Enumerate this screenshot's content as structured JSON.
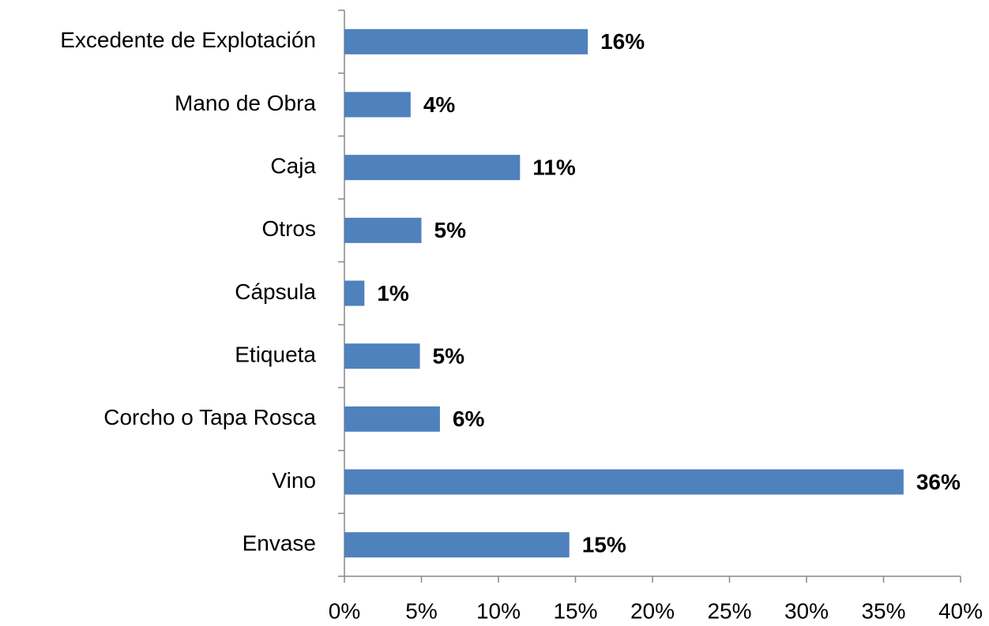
{
  "chart_data": {
    "type": "barh",
    "categories": [
      "Excedente de Explotación",
      "Mano de Obra",
      "Caja",
      "Otros",
      "Cápsula",
      "Etiqueta",
      "Corcho o Tapa Rosca",
      "Vino",
      "Envase"
    ],
    "values": [
      15.8,
      4.3,
      11.4,
      5.0,
      1.3,
      4.9,
      6.2,
      36.3,
      14.6
    ],
    "value_labels": [
      "16%",
      "4%",
      "11%",
      "5%",
      "1%",
      "5%",
      "6%",
      "36%",
      "15%"
    ],
    "color": "#4f81bd",
    "xlim": [
      0,
      40
    ],
    "xticks": [
      {
        "value": 0,
        "label": "0%"
      },
      {
        "value": 5,
        "label": "5%"
      },
      {
        "value": 10,
        "label": "10%"
      },
      {
        "value": 15,
        "label": "15%"
      },
      {
        "value": 20,
        "label": "20%"
      },
      {
        "value": 25,
        "label": "25%"
      },
      {
        "value": 30,
        "label": "30%"
      },
      {
        "value": 35,
        "label": "35%"
      },
      {
        "value": 40,
        "label": "40%"
      }
    ],
    "grid": false
  }
}
